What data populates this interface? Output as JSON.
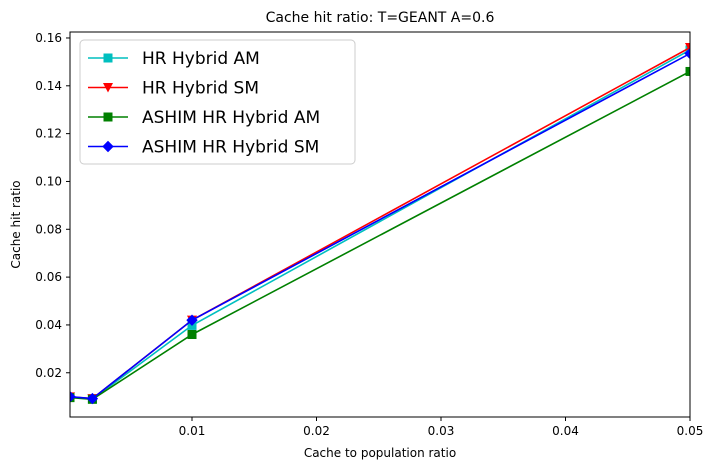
{
  "chart_data": {
    "type": "line",
    "title": "Cache hit ratio: T=GEANT A=0.6",
    "xlabel": "Cache to population ratio",
    "ylabel": "Cache hit ratio",
    "xlim": [
      0.0002,
      0.05
    ],
    "ylim": [
      0.0015,
      0.1625
    ],
    "xticks": [
      0.01,
      0.02,
      0.03,
      0.04,
      0.05
    ],
    "xtick_labels": [
      "0.01",
      "0.02",
      "0.03",
      "0.04",
      "0.05"
    ],
    "yticks": [
      0.02,
      0.04,
      0.06,
      0.08,
      0.1,
      0.12,
      0.14,
      0.16
    ],
    "ytick_labels": [
      "0.02",
      "0.04",
      "0.06",
      "0.08",
      "0.10",
      "0.12",
      "0.14",
      "0.16"
    ],
    "grid": false,
    "legend_position": "top-left",
    "x": [
      0.0002,
      0.002,
      0.01,
      0.05
    ],
    "series": [
      {
        "name": "HR Hybrid AM",
        "color": "#00bfbf",
        "marker": "square",
        "values": [
          0.0098,
          0.009,
          0.0398,
          0.155
        ]
      },
      {
        "name": "HR Hybrid SM",
        "color": "#ff0000",
        "marker": "triangle-down",
        "values": [
          0.0099,
          0.0092,
          0.042,
          0.156
        ]
      },
      {
        "name": "ASHIM HR Hybrid AM",
        "color": "#008000",
        "marker": "square",
        "values": [
          0.0096,
          0.0089,
          0.036,
          0.146
        ]
      },
      {
        "name": "ASHIM HR Hybrid SM",
        "color": "#0000ff",
        "marker": "diamond",
        "values": [
          0.01,
          0.0092,
          0.042,
          0.1535
        ]
      }
    ]
  }
}
